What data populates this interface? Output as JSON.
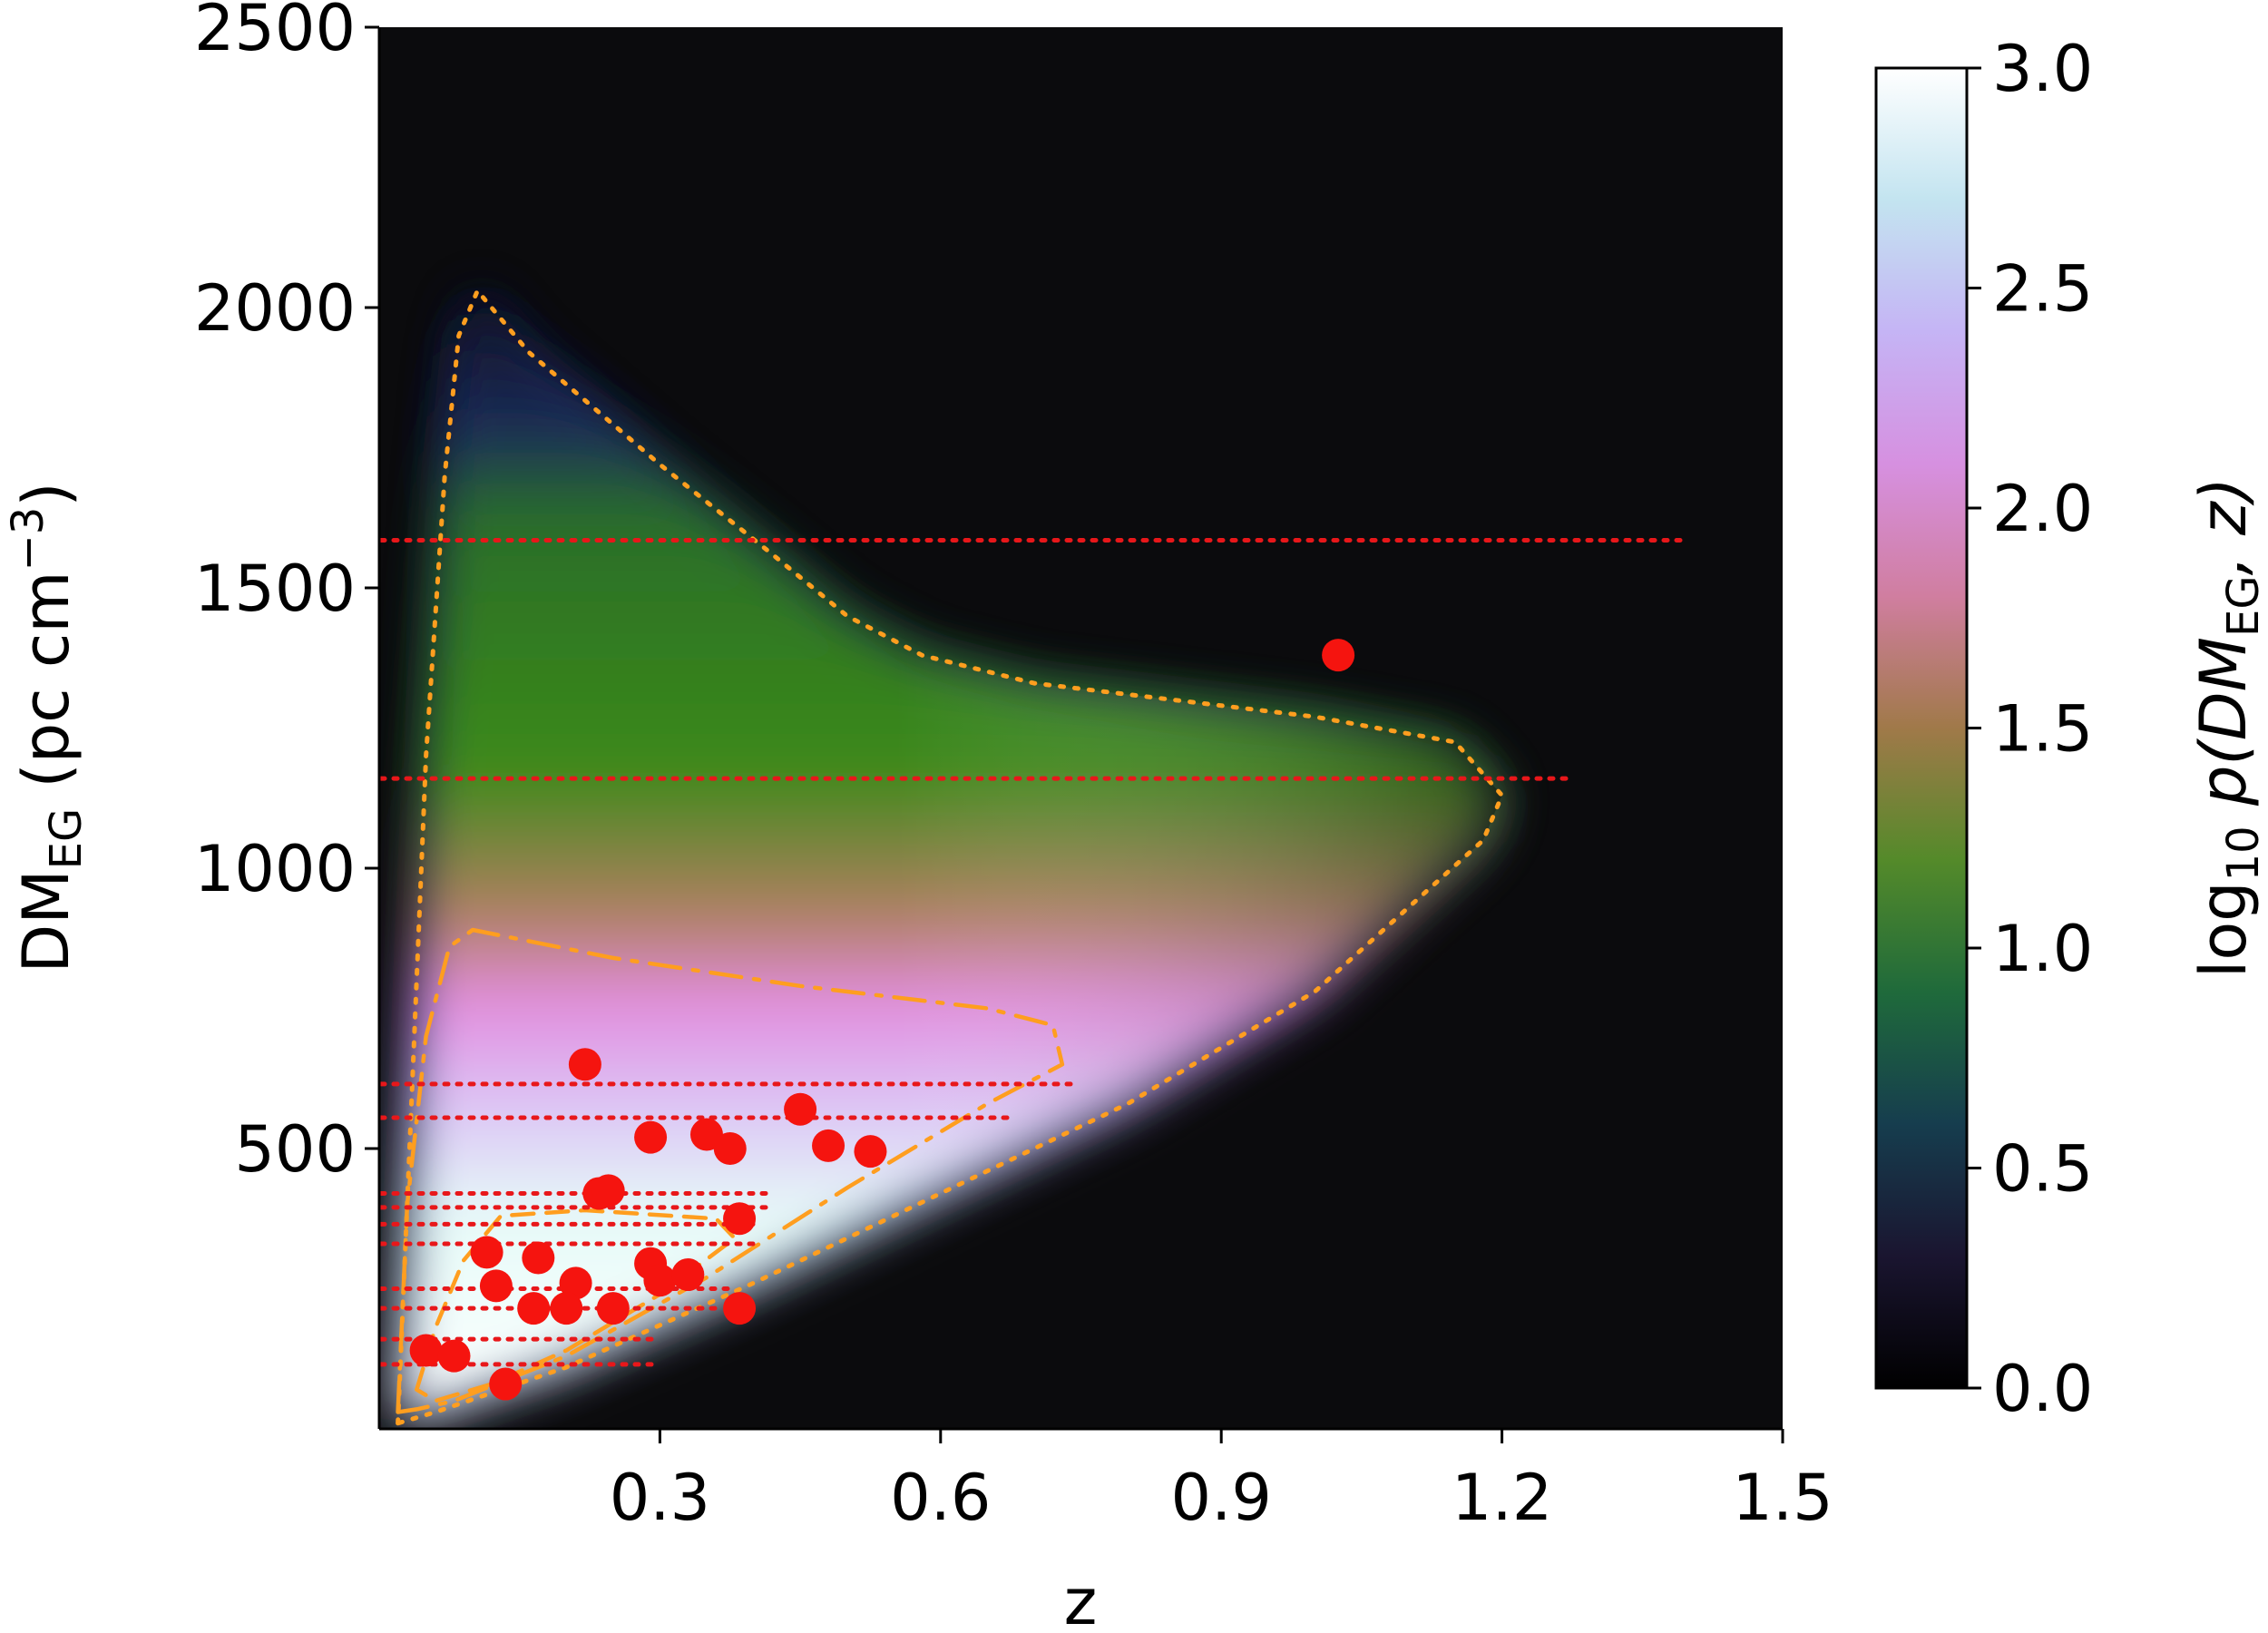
{
  "chart_data": {
    "type": "heatmap",
    "xlabel": "z",
    "ylabel": {
      "main": "DM",
      "sub": "EG",
      "rest": " (pc cm",
      "sup": "−3",
      "close": ")"
    },
    "xlim": [
      0.0,
      1.5
    ],
    "ylim": [
      0,
      2500
    ],
    "x_ticks": [
      {
        "value": 0.3,
        "label": "0.3"
      },
      {
        "value": 0.6,
        "label": "0.6"
      },
      {
        "value": 0.9,
        "label": "0.9"
      },
      {
        "value": 1.2,
        "label": "1.2"
      },
      {
        "value": 1.5,
        "label": "1.5"
      }
    ],
    "y_ticks": [
      {
        "value": 500,
        "label": "500"
      },
      {
        "value": 1000,
        "label": "1000"
      },
      {
        "value": 1500,
        "label": "1500"
      },
      {
        "value": 2000,
        "label": "2000"
      },
      {
        "value": 2500,
        "label": "2500"
      }
    ],
    "colorbar": {
      "label": {
        "pre": "log",
        "sub1": "10",
        "p": " p(DM",
        "sub2": "EG",
        "post": ", z)"
      },
      "range": [
        0.0,
        3.0
      ],
      "colormap": "cubehelix",
      "ticks": [
        {
          "value": 0.0,
          "label": "0.0"
        },
        {
          "value": 0.5,
          "label": "0.5"
        },
        {
          "value": 1.0,
          "label": "1.0"
        },
        {
          "value": 1.5,
          "label": "1.5"
        },
        {
          "value": 2.0,
          "label": "2.0"
        },
        {
          "value": 2.5,
          "label": "2.5"
        },
        {
          "value": 3.0,
          "label": "3.0"
        }
      ]
    },
    "contours": [
      {
        "style": "dotted",
        "color": "#ff9e1f",
        "points": [
          [
            0.02,
            10
          ],
          [
            0.035,
            600
          ],
          [
            0.05,
            1200
          ],
          [
            0.07,
            1700
          ],
          [
            0.085,
            1950
          ],
          [
            0.105,
            2030
          ],
          [
            0.16,
            1920
          ],
          [
            0.3,
            1720
          ],
          [
            0.42,
            1560
          ],
          [
            0.5,
            1450
          ],
          [
            0.58,
            1380
          ],
          [
            0.7,
            1330
          ],
          [
            0.85,
            1300
          ],
          [
            1.0,
            1270
          ],
          [
            1.15,
            1225
          ],
          [
            1.2,
            1130
          ],
          [
            1.18,
            1050
          ],
          [
            1.0,
            780
          ],
          [
            0.8,
            580
          ],
          [
            0.6,
            420
          ],
          [
            0.4,
            260
          ],
          [
            0.2,
            110
          ],
          [
            0.06,
            30
          ],
          [
            0.02,
            10
          ]
        ]
      },
      {
        "style": "dashdot",
        "color": "#ff9e1f",
        "points": [
          [
            0.02,
            30
          ],
          [
            0.03,
            400
          ],
          [
            0.05,
            700
          ],
          [
            0.075,
            860
          ],
          [
            0.1,
            890
          ],
          [
            0.25,
            840
          ],
          [
            0.45,
            790
          ],
          [
            0.65,
            750
          ],
          [
            0.72,
            720
          ],
          [
            0.73,
            650
          ],
          [
            0.65,
            580
          ],
          [
            0.5,
            430
          ],
          [
            0.35,
            270
          ],
          [
            0.2,
            130
          ],
          [
            0.08,
            50
          ],
          [
            0.04,
            35
          ],
          [
            0.02,
            30
          ]
        ]
      },
      {
        "style": "dashed",
        "color": "#ff9e1f",
        "points": [
          [
            0.04,
            70
          ],
          [
            0.06,
            180
          ],
          [
            0.09,
            300
          ],
          [
            0.13,
            380
          ],
          [
            0.22,
            390
          ],
          [
            0.36,
            375
          ],
          [
            0.38,
            340
          ],
          [
            0.3,
            240
          ],
          [
            0.2,
            140
          ],
          [
            0.12,
            80
          ],
          [
            0.06,
            50
          ],
          [
            0.04,
            70
          ]
        ]
      }
    ],
    "hlines": {
      "style": "dotted",
      "color": "#e8171a",
      "lines": [
        {
          "y": 1585,
          "x_end": 1.4
        },
        {
          "y": 1160,
          "x_end": 1.27
        },
        {
          "y": 615,
          "x_end": 0.74
        },
        {
          "y": 555,
          "x_end": 0.68
        },
        {
          "y": 420,
          "x_end": 0.42
        },
        {
          "y": 395,
          "x_end": 0.42
        },
        {
          "y": 365,
          "x_end": 0.4
        },
        {
          "y": 330,
          "x_end": 0.4
        },
        {
          "y": 250,
          "x_end": 0.38
        },
        {
          "y": 215,
          "x_end": 0.36
        },
        {
          "y": 160,
          "x_end": 0.3
        },
        {
          "y": 115,
          "x_end": 0.3
        }
      ]
    },
    "points": {
      "color": "#f5140f",
      "values": [
        {
          "x": 0.22,
          "y": 650
        },
        {
          "x": 0.29,
          "y": 520
        },
        {
          "x": 0.35,
          "y": 525
        },
        {
          "x": 0.375,
          "y": 500
        },
        {
          "x": 0.45,
          "y": 570
        },
        {
          "x": 0.48,
          "y": 505
        },
        {
          "x": 0.525,
          "y": 495
        },
        {
          "x": 0.235,
          "y": 420
        },
        {
          "x": 0.245,
          "y": 425
        },
        {
          "x": 0.385,
          "y": 375
        },
        {
          "x": 0.115,
          "y": 315
        },
        {
          "x": 0.17,
          "y": 305
        },
        {
          "x": 0.29,
          "y": 295
        },
        {
          "x": 0.3,
          "y": 265
        },
        {
          "x": 0.33,
          "y": 275
        },
        {
          "x": 0.125,
          "y": 255
        },
        {
          "x": 0.21,
          "y": 260
        },
        {
          "x": 0.165,
          "y": 215
        },
        {
          "x": 0.2,
          "y": 215
        },
        {
          "x": 0.25,
          "y": 215
        },
        {
          "x": 0.385,
          "y": 215
        },
        {
          "x": 0.05,
          "y": 140
        },
        {
          "x": 0.08,
          "y": 130
        },
        {
          "x": 0.135,
          "y": 80
        },
        {
          "x": 1.025,
          "y": 1380
        }
      ]
    }
  }
}
